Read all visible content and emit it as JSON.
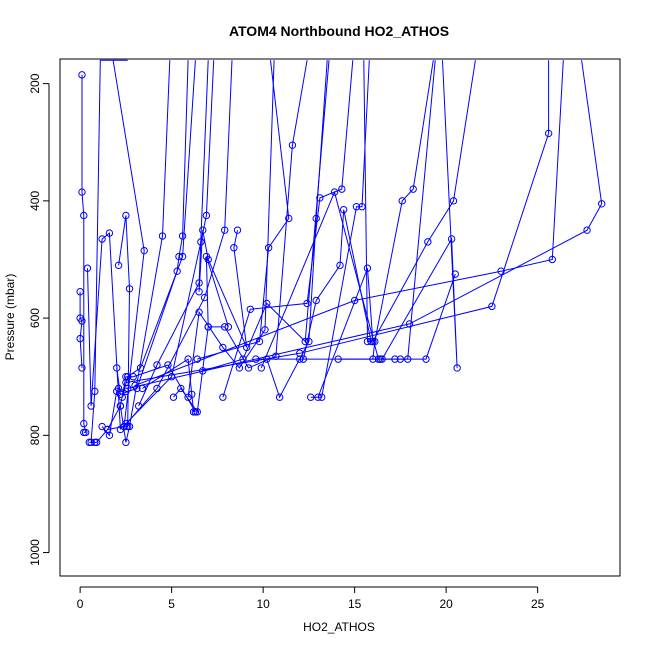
{
  "chart_data": {
    "type": "line",
    "title": "ATOM4 Northbound HO2_ATHOS",
    "xlabel": "HO2_ATHOS",
    "ylabel": "Pressure (mbar)",
    "xlim": [
      -1.1,
      29.5
    ],
    "ylim": [
      1040,
      158
    ],
    "y_reversed": true,
    "xticks": [
      0,
      5,
      10,
      15,
      20,
      25
    ],
    "yticks": [
      200,
      400,
      600,
      800,
      1000
    ],
    "series_color": "#0000ff",
    "series": [
      {
        "x": [
          0.1,
          0.1,
          0.2,
          0.2,
          0.3,
          0.2
        ],
        "y": [
          185,
          385,
          425,
          780,
          795,
          795
        ]
      },
      {
        "x": [
          0.0,
          0.0,
          0.1,
          0.0,
          0.1
        ],
        "y": [
          555,
          600,
          605,
          635,
          685
        ]
      },
      {
        "x": [
          0.4,
          0.6,
          1.2,
          1.6,
          2.2
        ],
        "y": [
          515,
          750,
          465,
          455,
          790
        ]
      },
      {
        "x": [
          0.5,
          0.8,
          0.9,
          1.5,
          2.4,
          3.5,
          1.8
        ],
        "y": [
          812,
          812,
          812,
          790,
          785,
          485,
          160
        ]
      },
      {
        "x": [
          0.6,
          0.8,
          1.1,
          2.6
        ],
        "y": [
          812,
          725,
          160,
          160
        ]
      },
      {
        "x": [
          2.1,
          2.5,
          2.7,
          2.6
        ],
        "y": [
          510,
          425,
          550,
          785
        ]
      },
      {
        "x": [
          2.2,
          2.5,
          2.7,
          4.5,
          4.9
        ],
        "y": [
          750,
          812,
          785,
          460,
          160
        ]
      },
      {
        "x": [
          2.0,
          2.2,
          3.1,
          5.3,
          5.4,
          5.6,
          5.9
        ],
        "y": [
          685,
          730,
          720,
          520,
          495,
          460,
          160
        ]
      },
      {
        "x": [
          2.3,
          2.6,
          3.3,
          5.6,
          6.3
        ],
        "y": [
          735,
          700,
          685,
          495,
          160
        ]
      },
      {
        "x": [
          3.2,
          4.2,
          6.5,
          7.0
        ],
        "y": [
          750,
          680,
          540,
          160
        ]
      },
      {
        "x": [
          3.4,
          5.9,
          6.1,
          6.2
        ],
        "y": [
          720,
          670,
          730,
          760
        ]
      },
      {
        "x": [
          2.4,
          4.2,
          6.8,
          7.9,
          8.3
        ],
        "y": [
          785,
          720,
          565,
          450,
          160
        ]
      },
      {
        "x": [
          2.5,
          5.0,
          6.6,
          6.9,
          7.3
        ],
        "y": [
          780,
          700,
          470,
          425,
          160
        ]
      },
      {
        "x": [
          5.1,
          5.5,
          6.4,
          7.0,
          6.9,
          8.1
        ],
        "y": [
          735,
          720,
          760,
          615,
          495,
          615
        ]
      },
      {
        "x": [
          6.5,
          6.7,
          7.0,
          9.1,
          8.4,
          8.6
        ],
        "y": [
          555,
          450,
          500,
          650,
          480,
          450
        ]
      },
      {
        "x": [
          5.9,
          6.5,
          7.8,
          8.7,
          10.1,
          10.6
        ],
        "y": [
          735,
          590,
          650,
          685,
          620,
          160
        ]
      },
      {
        "x": [
          7.0,
          7.9,
          9.2,
          10.7,
          11.6,
          12.4
        ],
        "y": [
          615,
          615,
          685,
          665,
          305,
          160
        ]
      },
      {
        "x": [
          6.7,
          8.9,
          10.2,
          12.3,
          13.6
        ],
        "y": [
          690,
          670,
          575,
          640,
          160
        ]
      },
      {
        "x": [
          6.4,
          9.8,
          10.3,
          11.4,
          10.4
        ],
        "y": [
          670,
          640,
          480,
          430,
          160
        ]
      },
      {
        "x": [
          7.8,
          9.3,
          12.4,
          13.1,
          14.3,
          14.9
        ],
        "y": [
          735,
          585,
          575,
          395,
          380,
          160
        ]
      },
      {
        "x": [
          10.2,
          10.9,
          12.5,
          12.9,
          13.5
        ],
        "y": [
          670,
          735,
          640,
          430,
          160
        ]
      },
      {
        "x": [
          12.6,
          13.2,
          15.1,
          15.4,
          15.8
        ],
        "y": [
          735,
          735,
          410,
          410,
          160
        ]
      },
      {
        "x": [
          12.2,
          12.9,
          14.2,
          14.4,
          15.9,
          15.7,
          15.5
        ],
        "y": [
          670,
          570,
          510,
          415,
          640,
          640,
          160
        ]
      },
      {
        "x": [
          9.6,
          12.0,
          16.0,
          16.1,
          17.6,
          18.2,
          19.3
        ],
        "y": [
          670,
          670,
          670,
          640,
          400,
          380,
          160
        ]
      },
      {
        "x": [
          13.0,
          15.7,
          16.0,
          19.0,
          20.4,
          21.6
        ],
        "y": [
          735,
          515,
          640,
          470,
          400,
          160
        ]
      },
      {
        "x": [
          14.1,
          16.4,
          17.2,
          17.5,
          18.9,
          20.5
        ],
        "y": [
          670,
          670,
          670,
          670,
          670,
          525
        ]
      },
      {
        "x": [
          9.9,
          13.9,
          16.3,
          17.9,
          19.4
        ],
        "y": [
          685,
          385,
          670,
          670,
          160
        ]
      },
      {
        "x": [
          16.5,
          20.3,
          20.6,
          19.8
        ],
        "y": [
          670,
          465,
          685,
          160
        ]
      },
      {
        "x": [
          2.5,
          12.0,
          22.5,
          25.6,
          25.6
        ],
        "y": [
          710,
          660,
          580,
          285,
          160
        ]
      },
      {
        "x": [
          3.0,
          15.0,
          23.0,
          25.8,
          26.4
        ],
        "y": [
          715,
          570,
          520,
          500,
          160
        ]
      },
      {
        "x": [
          2.6,
          18.0,
          27.7,
          28.5,
          27.4
        ],
        "y": [
          720,
          610,
          450,
          405,
          160
        ]
      },
      {
        "x": [
          1.5,
          2.2,
          2.5,
          2.9,
          4.8,
          6.3
        ],
        "y": [
          790,
          750,
          700,
          700,
          680,
          760
        ]
      },
      {
        "x": [
          1.2,
          1.6,
          2.0,
          2.1,
          2.5
        ],
        "y": [
          785,
          800,
          725,
          720,
          725
        ]
      }
    ]
  }
}
